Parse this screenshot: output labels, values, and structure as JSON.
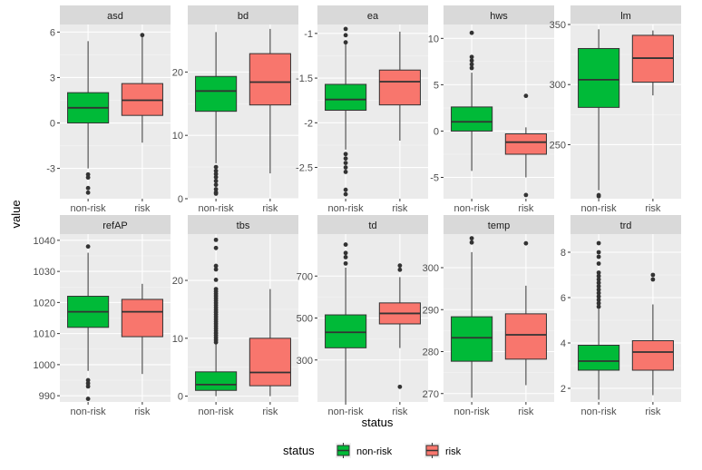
{
  "chart_data": {
    "type": "box",
    "layout": "facet-grid 2 rows x 5 columns, free y scales",
    "xlabel": "status",
    "ylabel": "value",
    "categories": [
      "non-risk",
      "risk"
    ],
    "colors": {
      "non-risk": "#00BA38",
      "risk": "#F8766D"
    },
    "grid": true,
    "legend": {
      "position": "bottom",
      "title": "status",
      "entries": [
        {
          "label": "non-risk",
          "color": "#00BA38"
        },
        {
          "label": "risk",
          "color": "#F8766D"
        }
      ]
    },
    "facets": [
      {
        "name": "asd",
        "ylim": [
          -5,
          6.5
        ],
        "yticks": [
          -3,
          0,
          3,
          6
        ],
        "boxes": [
          {
            "group": "non-risk",
            "q1": 0.0,
            "median": 1.0,
            "q3": 2.0,
            "whisker_low": -3.0,
            "whisker_high": 5.4,
            "outliers": [
              -3.4,
              -3.6,
              -4.3,
              -4.6
            ]
          },
          {
            "group": "risk",
            "q1": 0.5,
            "median": 1.5,
            "q3": 2.6,
            "whisker_low": -1.3,
            "whisker_high": 5.8,
            "outliers": [
              5.8
            ]
          }
        ]
      },
      {
        "name": "bd",
        "ylim": [
          0,
          27.5
        ],
        "yticks": [
          0,
          10,
          20
        ],
        "boxes": [
          {
            "group": "non-risk",
            "q1": 13.8,
            "median": 17.0,
            "q3": 19.3,
            "whisker_low": 5.6,
            "whisker_high": 26.3,
            "outliers": [
              5.0,
              4.4,
              3.9,
              3.4,
              2.8,
              2.2,
              1.5,
              1.0,
              0.8
            ]
          },
          {
            "group": "risk",
            "q1": 14.8,
            "median": 18.4,
            "q3": 22.9,
            "whisker_low": 4.0,
            "whisker_high": 26.8,
            "outliers": []
          }
        ]
      },
      {
        "name": "ea",
        "ylim": [
          -2.85,
          -0.9
        ],
        "yticks": [
          -2.5,
          -2.0,
          -1.5,
          -1.0
        ],
        "boxes": [
          {
            "group": "non-risk",
            "q1": -1.86,
            "median": -1.74,
            "q3": -1.57,
            "whisker_low": -2.3,
            "whisker_high": -1.12,
            "outliers": [
              -0.95,
              -1.02,
              -1.1,
              -2.35,
              -2.4,
              -2.45,
              -2.5,
              -2.55,
              -2.75,
              -2.8
            ]
          },
          {
            "group": "risk",
            "q1": -1.8,
            "median": -1.54,
            "q3": -1.41,
            "whisker_low": -2.2,
            "whisker_high": -0.98,
            "outliers": []
          }
        ]
      },
      {
        "name": "hws",
        "ylim": [
          -7.3,
          11.5
        ],
        "yticks": [
          -5,
          0,
          5,
          10
        ],
        "boxes": [
          {
            "group": "non-risk",
            "q1": 0.0,
            "median": 1.0,
            "q3": 2.6,
            "whisker_low": -4.3,
            "whisker_high": 6.3,
            "outliers": [
              6.8,
              7.2,
              7.6,
              8.0,
              10.6
            ]
          },
          {
            "group": "risk",
            "q1": -2.5,
            "median": -1.2,
            "q3": -0.3,
            "whisker_low": -5.0,
            "whisker_high": 0.4,
            "outliers": [
              3.8,
              -6.9
            ]
          }
        ]
      },
      {
        "name": "lm",
        "ylim": [
          205,
          350
        ],
        "yticks": [
          250,
          300,
          350
        ],
        "boxes": [
          {
            "group": "non-risk",
            "q1": 281,
            "median": 304,
            "q3": 330,
            "whisker_low": 212,
            "whisker_high": 346,
            "outliers": [
              207,
              208
            ]
          },
          {
            "group": "risk",
            "q1": 302,
            "median": 322,
            "q3": 341,
            "whisker_low": 291,
            "whisker_high": 345,
            "outliers": []
          }
        ]
      },
      {
        "name": "refAP",
        "ylim": [
          988,
          1042
        ],
        "yticks": [
          990,
          1000,
          1010,
          1020,
          1030,
          1040
        ],
        "boxes": [
          {
            "group": "non-risk",
            "q1": 1012,
            "median": 1017,
            "q3": 1022,
            "whisker_low": 998,
            "whisker_high": 1036,
            "outliers": [
              1038,
              995,
              994,
              993,
              989
            ]
          },
          {
            "group": "risk",
            "q1": 1009,
            "median": 1017,
            "q3": 1021,
            "whisker_low": 997,
            "whisker_high": 1026,
            "outliers": []
          }
        ]
      },
      {
        "name": "tbs",
        "ylim": [
          -1,
          28
        ],
        "yticks": [
          0,
          10,
          20
        ],
        "boxes": [
          {
            "group": "non-risk",
            "q1": 1.0,
            "median": 2.0,
            "q3": 4.2,
            "whisker_low": 0.0,
            "whisker_high": 9.0,
            "outliers": [
              9.3,
              9.7,
              10.1,
              10.5,
              10.9,
              11.3,
              11.7,
              12.1,
              12.5,
              12.9,
              13.3,
              13.7,
              14.1,
              14.5,
              14.9,
              15.3,
              15.7,
              16.1,
              16.5,
              16.9,
              17.3,
              17.7,
              18.1,
              18.5,
              20.1,
              21.9,
              22.5,
              25.6,
              27.0
            ]
          },
          {
            "group": "risk",
            "q1": 1.8,
            "median": 4.1,
            "q3": 10.0,
            "whisker_low": 0.0,
            "whisker_high": 18.5,
            "outliers": []
          }
        ]
      },
      {
        "name": "td",
        "ylim": [
          100,
          900
        ],
        "yticks": [
          300,
          500,
          700
        ],
        "boxes": [
          {
            "group": "non-risk",
            "q1": 358,
            "median": 432,
            "q3": 515,
            "whisker_low": 100,
            "whisker_high": 740,
            "outliers": [
              760,
              790,
              810,
              850
            ]
          },
          {
            "group": "risk",
            "q1": 472,
            "median": 522,
            "q3": 572,
            "whisker_low": 357,
            "whisker_high": 695,
            "outliers": [
              730,
              750,
              172
            ]
          }
        ]
      },
      {
        "name": "temp",
        "ylim": [
          268,
          308
        ],
        "yticks": [
          270,
          280,
          290,
          300
        ],
        "boxes": [
          {
            "group": "non-risk",
            "q1": 277.7,
            "median": 283.3,
            "q3": 288.3,
            "whisker_low": 269,
            "whisker_high": 303.7,
            "outliers": [
              306,
              307
            ]
          },
          {
            "group": "risk",
            "q1": 278.2,
            "median": 284.0,
            "q3": 289.0,
            "whisker_low": 272,
            "whisker_high": 295.7,
            "outliers": [
              305.8
            ]
          }
        ]
      },
      {
        "name": "trd",
        "ylim": [
          1.4,
          8.8
        ],
        "yticks": [
          2,
          4,
          6,
          8
        ],
        "boxes": [
          {
            "group": "non-risk",
            "q1": 2.8,
            "median": 3.2,
            "q3": 3.9,
            "whisker_low": 1.5,
            "whisker_high": 5.5,
            "outliers": [
              5.6,
              5.75,
              5.9,
              6.05,
              6.2,
              6.35,
              6.5,
              6.65,
              6.8,
              6.95,
              7.1,
              7.5,
              7.8,
              8.0,
              8.4
            ]
          },
          {
            "group": "risk",
            "q1": 2.8,
            "median": 3.6,
            "q3": 4.1,
            "whisker_low": 1.7,
            "whisker_high": 5.7,
            "outliers": [
              6.8,
              7.0
            ]
          }
        ]
      }
    ]
  }
}
